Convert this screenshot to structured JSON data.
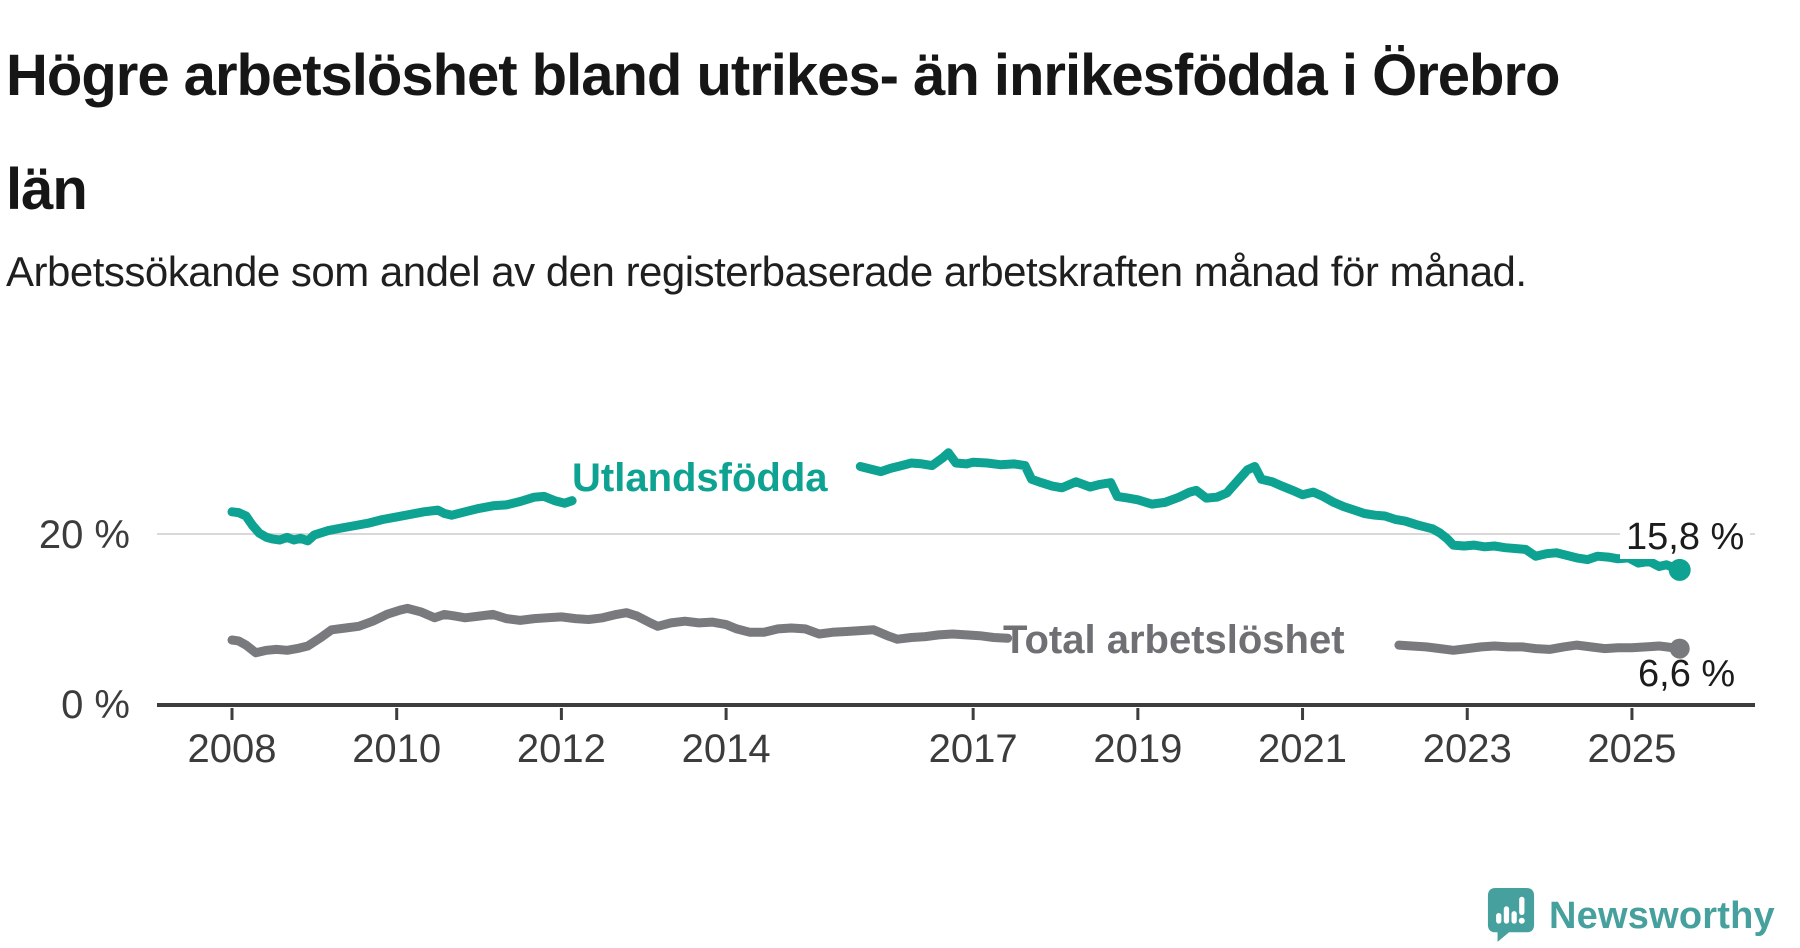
{
  "page": {
    "title": "Högre arbetslöshet bland utrikes- än inrikesfödda i Örebro län",
    "title_line1": "Högre arbetslöshet bland utrikes- än inrikesfödda i Örebro",
    "title_line2": "län",
    "subtitle": "Arbetssökande som andel av den registerbaserade arbetskraften månad för månad."
  },
  "branding": {
    "icon": "newsworthy-speech-bubble-bar-chart-icon",
    "wordmark": "Newsworthy",
    "color": "#46a09d"
  },
  "chart_data": {
    "type": "line",
    "unit": "%",
    "x_unit": "year_decimal",
    "grid": "horizontal-only",
    "legend_position": "inline-on-lines",
    "x_axis": {
      "ticks": [
        2008,
        2010,
        2012,
        2014,
        2017,
        2019,
        2021,
        2023,
        2025
      ],
      "range": [
        2007.9,
        2026.6
      ]
    },
    "y_axis": {
      "ticks": [
        {
          "value": 0,
          "label": "0 %"
        },
        {
          "value": 20,
          "label": "20 %"
        }
      ],
      "range": [
        0,
        33
      ],
      "gridlines": [
        20
      ]
    },
    "colors": {
      "utlandsfodda": "#0da291",
      "total": "#797a7e",
      "axis": "#3d3d3d",
      "gridline": "#d9d9d9"
    },
    "series": [
      {
        "name": "Utlandsfödda",
        "color": "#0da291",
        "end_label": "15,8 %",
        "end_point": [
          2025.58,
          15.8
        ],
        "label_gap_years": [
          2012.13,
          2015.63
        ],
        "segments": [
          [
            [
              2008.0,
              22.6
            ],
            [
              2008.08,
              22.5
            ],
            [
              2008.17,
              22.1
            ],
            [
              2008.25,
              21.0
            ],
            [
              2008.33,
              20.1
            ],
            [
              2008.42,
              19.6
            ],
            [
              2008.5,
              19.4
            ],
            [
              2008.58,
              19.3
            ],
            [
              2008.67,
              19.6
            ],
            [
              2008.75,
              19.3
            ],
            [
              2008.83,
              19.5
            ],
            [
              2008.92,
              19.2
            ],
            [
              2009.0,
              19.9
            ],
            [
              2009.17,
              20.4
            ],
            [
              2009.33,
              20.7
            ],
            [
              2009.5,
              21.0
            ],
            [
              2009.67,
              21.3
            ],
            [
              2009.83,
              21.7
            ],
            [
              2010.0,
              22.0
            ],
            [
              2010.17,
              22.3
            ],
            [
              2010.33,
              22.6
            ],
            [
              2010.5,
              22.8
            ],
            [
              2010.58,
              22.4
            ],
            [
              2010.67,
              22.2
            ],
            [
              2010.83,
              22.6
            ],
            [
              2011.0,
              23.0
            ],
            [
              2011.17,
              23.3
            ],
            [
              2011.33,
              23.4
            ],
            [
              2011.5,
              23.8
            ],
            [
              2011.67,
              24.3
            ],
            [
              2011.79,
              24.4
            ],
            [
              2011.92,
              23.9
            ],
            [
              2012.04,
              23.6
            ],
            [
              2012.13,
              23.9
            ]
          ],
          [
            [
              2015.63,
              27.9
            ],
            [
              2015.75,
              27.6
            ],
            [
              2015.88,
              27.3
            ],
            [
              2016.0,
              27.7
            ],
            [
              2016.13,
              28.0
            ],
            [
              2016.25,
              28.3
            ],
            [
              2016.38,
              28.2
            ],
            [
              2016.5,
              28.0
            ],
            [
              2016.63,
              28.9
            ],
            [
              2016.7,
              29.5
            ],
            [
              2016.79,
              28.3
            ],
            [
              2016.92,
              28.2
            ],
            [
              2017.0,
              28.4
            ],
            [
              2017.17,
              28.3
            ],
            [
              2017.33,
              28.1
            ],
            [
              2017.5,
              28.2
            ],
            [
              2017.63,
              28.0
            ],
            [
              2017.71,
              26.4
            ],
            [
              2017.83,
              26.0
            ],
            [
              2017.96,
              25.6
            ],
            [
              2018.08,
              25.4
            ],
            [
              2018.25,
              26.1
            ],
            [
              2018.42,
              25.5
            ],
            [
              2018.54,
              25.8
            ],
            [
              2018.67,
              26.0
            ],
            [
              2018.75,
              24.4
            ],
            [
              2018.88,
              24.2
            ],
            [
              2019.0,
              24.0
            ],
            [
              2019.17,
              23.5
            ],
            [
              2019.33,
              23.7
            ],
            [
              2019.5,
              24.3
            ],
            [
              2019.63,
              24.9
            ],
            [
              2019.71,
              25.1
            ],
            [
              2019.83,
              24.2
            ],
            [
              2019.96,
              24.3
            ],
            [
              2020.08,
              24.8
            ],
            [
              2020.21,
              26.2
            ],
            [
              2020.33,
              27.5
            ],
            [
              2020.42,
              27.9
            ],
            [
              2020.5,
              26.4
            ],
            [
              2020.63,
              26.1
            ],
            [
              2020.75,
              25.6
            ],
            [
              2020.88,
              25.1
            ],
            [
              2021.0,
              24.6
            ],
            [
              2021.13,
              24.9
            ],
            [
              2021.25,
              24.4
            ],
            [
              2021.38,
              23.7
            ],
            [
              2021.5,
              23.2
            ],
            [
              2021.63,
              22.8
            ],
            [
              2021.75,
              22.4
            ],
            [
              2021.88,
              22.2
            ],
            [
              2022.0,
              22.1
            ],
            [
              2022.13,
              21.7
            ],
            [
              2022.25,
              21.5
            ],
            [
              2022.38,
              21.1
            ],
            [
              2022.5,
              20.8
            ],
            [
              2022.58,
              20.6
            ],
            [
              2022.67,
              20.1
            ],
            [
              2022.75,
              19.5
            ],
            [
              2022.83,
              18.7
            ],
            [
              2022.96,
              18.6
            ],
            [
              2023.08,
              18.7
            ],
            [
              2023.21,
              18.5
            ],
            [
              2023.33,
              18.6
            ],
            [
              2023.46,
              18.4
            ],
            [
              2023.58,
              18.3
            ],
            [
              2023.71,
              18.2
            ],
            [
              2023.83,
              17.4
            ],
            [
              2023.96,
              17.7
            ],
            [
              2024.08,
              17.8
            ],
            [
              2024.21,
              17.5
            ],
            [
              2024.33,
              17.2
            ],
            [
              2024.46,
              17.0
            ],
            [
              2024.58,
              17.4
            ],
            [
              2024.71,
              17.3
            ],
            [
              2024.83,
              17.1
            ],
            [
              2024.96,
              17.2
            ],
            [
              2025.08,
              16.6
            ],
            [
              2025.21,
              16.8
            ],
            [
              2025.33,
              16.2
            ],
            [
              2025.42,
              16.4
            ],
            [
              2025.58,
              15.8
            ]
          ]
        ]
      },
      {
        "name": "Total arbetslöshet",
        "color": "#797a7e",
        "end_label": "6,6 %",
        "end_point": [
          2025.58,
          6.6
        ],
        "label_gap_years": [
          2017.42,
          2022.17
        ],
        "segments": [
          [
            [
              2008.0,
              7.6
            ],
            [
              2008.08,
              7.5
            ],
            [
              2008.17,
              7.0
            ],
            [
              2008.29,
              6.1
            ],
            [
              2008.42,
              6.4
            ],
            [
              2008.54,
              6.5
            ],
            [
              2008.67,
              6.4
            ],
            [
              2008.79,
              6.6
            ],
            [
              2008.92,
              6.9
            ],
            [
              2009.08,
              7.9
            ],
            [
              2009.21,
              8.8
            ],
            [
              2009.38,
              9.0
            ],
            [
              2009.54,
              9.2
            ],
            [
              2009.71,
              9.8
            ],
            [
              2009.88,
              10.6
            ],
            [
              2010.04,
              11.1
            ],
            [
              2010.13,
              11.3
            ],
            [
              2010.29,
              10.9
            ],
            [
              2010.46,
              10.2
            ],
            [
              2010.58,
              10.6
            ],
            [
              2010.71,
              10.4
            ],
            [
              2010.83,
              10.2
            ],
            [
              2011.0,
              10.4
            ],
            [
              2011.17,
              10.6
            ],
            [
              2011.33,
              10.1
            ],
            [
              2011.5,
              9.9
            ],
            [
              2011.67,
              10.1
            ],
            [
              2011.83,
              10.2
            ],
            [
              2012.0,
              10.3
            ],
            [
              2012.17,
              10.1
            ],
            [
              2012.33,
              10.0
            ],
            [
              2012.5,
              10.2
            ],
            [
              2012.67,
              10.6
            ],
            [
              2012.79,
              10.8
            ],
            [
              2012.92,
              10.4
            ],
            [
              2013.08,
              9.6
            ],
            [
              2013.17,
              9.2
            ],
            [
              2013.33,
              9.6
            ],
            [
              2013.5,
              9.8
            ],
            [
              2013.67,
              9.6
            ],
            [
              2013.83,
              9.7
            ],
            [
              2014.0,
              9.4
            ],
            [
              2014.13,
              8.9
            ],
            [
              2014.29,
              8.5
            ],
            [
              2014.46,
              8.5
            ],
            [
              2014.63,
              8.9
            ],
            [
              2014.79,
              9.0
            ],
            [
              2014.96,
              8.9
            ],
            [
              2015.13,
              8.3
            ],
            [
              2015.29,
              8.5
            ],
            [
              2015.46,
              8.6
            ],
            [
              2015.63,
              8.7
            ],
            [
              2015.79,
              8.8
            ],
            [
              2015.96,
              8.1
            ],
            [
              2016.08,
              7.7
            ],
            [
              2016.25,
              7.9
            ],
            [
              2016.42,
              8.0
            ],
            [
              2016.58,
              8.2
            ],
            [
              2016.75,
              8.3
            ],
            [
              2016.92,
              8.2
            ],
            [
              2017.08,
              8.1
            ],
            [
              2017.25,
              7.9
            ],
            [
              2017.42,
              7.8
            ]
          ],
          [
            [
              2022.17,
              7.0
            ],
            [
              2022.33,
              6.9
            ],
            [
              2022.5,
              6.8
            ],
            [
              2022.67,
              6.6
            ],
            [
              2022.83,
              6.4
            ],
            [
              2023.0,
              6.6
            ],
            [
              2023.17,
              6.8
            ],
            [
              2023.33,
              6.9
            ],
            [
              2023.5,
              6.8
            ],
            [
              2023.67,
              6.8
            ],
            [
              2023.83,
              6.6
            ],
            [
              2024.0,
              6.5
            ],
            [
              2024.17,
              6.8
            ],
            [
              2024.33,
              7.0
            ],
            [
              2024.5,
              6.8
            ],
            [
              2024.67,
              6.6
            ],
            [
              2024.83,
              6.7
            ],
            [
              2025.0,
              6.7
            ],
            [
              2025.17,
              6.8
            ],
            [
              2025.33,
              6.9
            ],
            [
              2025.42,
              6.8
            ],
            [
              2025.58,
              6.6
            ]
          ]
        ]
      }
    ]
  }
}
